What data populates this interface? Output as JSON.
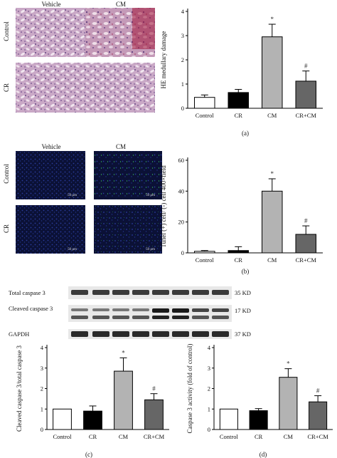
{
  "micrographs": {
    "panel_a": {
      "col_headers": [
        "Vehicle",
        "CM"
      ],
      "row_labels": [
        "Control",
        "CR"
      ]
    },
    "panel_b": {
      "col_headers": [
        "Vehicle",
        "CM"
      ],
      "row_labels": [
        "Control",
        "CR"
      ],
      "scale_bars": [
        "50 μm",
        "50 μm",
        "50 μm",
        "50 μm"
      ]
    }
  },
  "western_blot": {
    "rows": [
      {
        "label": "Total caspase 3",
        "kd": "35 KD"
      },
      {
        "label": "Cleaved caspase 3",
        "kd": "17 KD"
      },
      {
        "label": "GAPDH",
        "kd": "37 KD"
      }
    ]
  },
  "panel_letters": {
    "a": "(a)",
    "b": "(b)",
    "c": "(c)",
    "d": "(d)"
  },
  "chart_data": [
    {
      "id": "a",
      "type": "bar",
      "categories": [
        "Control",
        "CR",
        "CM",
        "CR+CM"
      ],
      "values": [
        0.45,
        0.65,
        2.95,
        1.12
      ],
      "errors": [
        0.1,
        0.13,
        0.52,
        0.42
      ],
      "colors": [
        "#ffffff",
        "#000000",
        "#b3b3b3",
        "#666666"
      ],
      "ylabel": "HE medullary damage",
      "ylim": [
        0,
        4
      ],
      "yticks": [
        0,
        1,
        2,
        3,
        4
      ],
      "annotations": [
        "",
        "",
        "*",
        "#"
      ]
    },
    {
      "id": "b",
      "type": "bar",
      "categories": [
        "Control",
        "CR",
        "CM",
        "CR+CM"
      ],
      "values": [
        1.0,
        1.5,
        40,
        12
      ],
      "errors": [
        0.5,
        2.5,
        8,
        5.5
      ],
      "colors": [
        "#ffffff",
        "#000000",
        "#b3b3b3",
        "#666666"
      ],
      "ylabel": "Tunel (+) cell/ (-) cell 400×field",
      "ylim": [
        0,
        60
      ],
      "yticks": [
        0,
        20,
        40,
        60
      ],
      "annotations": [
        "",
        "",
        "*",
        "#"
      ]
    },
    {
      "id": "c",
      "type": "bar",
      "categories": [
        "Control",
        "CR",
        "CM",
        "CR+CM"
      ],
      "values": [
        1.0,
        0.9,
        2.85,
        1.45
      ],
      "errors": [
        0,
        0.25,
        0.65,
        0.3
      ],
      "colors": [
        "#ffffff",
        "#000000",
        "#b3b3b3",
        "#666666"
      ],
      "ylabel": "Cleaved caspase 3/total caspase 3",
      "ylim": [
        0,
        4
      ],
      "yticks": [
        0,
        1,
        2,
        3,
        4
      ],
      "annotations": [
        "",
        "",
        "*",
        "#"
      ]
    },
    {
      "id": "d",
      "type": "bar",
      "categories": [
        "Control",
        "CR",
        "CM",
        "CR+CM"
      ],
      "values": [
        1.0,
        0.92,
        2.55,
        1.35
      ],
      "errors": [
        0,
        0.1,
        0.42,
        0.3
      ],
      "colors": [
        "#ffffff",
        "#000000",
        "#b3b3b3",
        "#666666"
      ],
      "ylabel": "Caspase 3 activity (fold of control)",
      "ylim": [
        0,
        4
      ],
      "yticks": [
        0,
        1,
        2,
        3,
        4
      ],
      "annotations": [
        "",
        "",
        "*",
        "#"
      ]
    }
  ]
}
